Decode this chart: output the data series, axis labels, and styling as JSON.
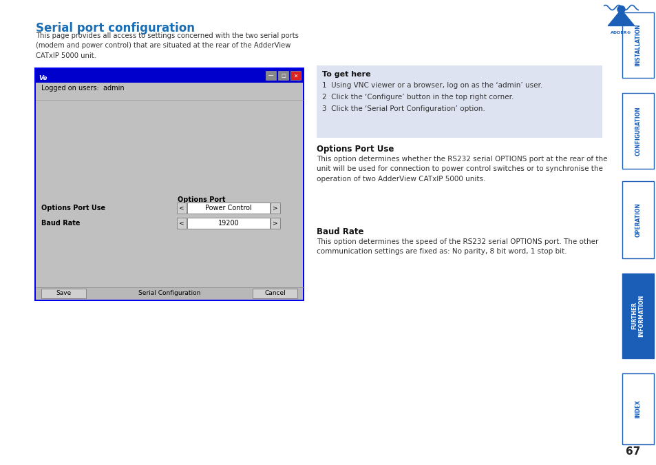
{
  "page_bg": "#ffffff",
  "title": "Serial port configuration",
  "title_color": "#1a6eb5",
  "body_text": "This page provides all access to settings concerned with the two serial ports\n(modem and power control) that are situated at the rear of the AdderView\nCATxIP 5000 unit.",
  "sidebar_labels": [
    "INSTALLATION",
    "CONFIGURATION",
    "OPERATION",
    "FURTHER\nINFORMATION",
    "INDEX"
  ],
  "sidebar_active": 3,
  "sidebar_color_active": "#1a5eb8",
  "sidebar_color_inactive_bg": "#ffffff",
  "sidebar_color_inactive_text": "#1a5eb8",
  "sidebar_border_color": "#1a5eb8",
  "page_number": "67",
  "adder_logo_color": "#1a5eb8",
  "get_here_title": "To get here",
  "get_here_items": [
    "1  Using VNC viewer or a browser, log on as the ‘admin’ user.",
    "2  Click the ‘Configure’ button in the top right corner.",
    "3  Click the ‘Serial Port Configuration’ option."
  ],
  "get_here_bg": "#dde3f0",
  "options_port_use_title": "Options Port Use",
  "options_port_use_body": "This option determines whether the RS232 serial OPTIONS port at the rear of the\nunit will be used for connection to power control switches or to synchronise the\noperation of two AdderView CATxIP 5000 units.",
  "baud_rate_title": "Baud Rate",
  "baud_rate_body": "This option determines the speed of the RS232 serial OPTIONS port. The other\ncommunication settings are fixed as: No parity, 8 bit word, 1 stop bit.",
  "dialog_bg": "#c0c0c0",
  "dialog_titlebar_color": "#0000cc",
  "dialog_logged_text": "Logged on users:  admin",
  "dialog_options_port_label": "Options Port",
  "dialog_row1_label": "Options Port Use",
  "dialog_row1_value": "Power Control",
  "dialog_row2_label": "Baud Rate",
  "dialog_row2_value": "19200",
  "dialog_save_btn": "Save",
  "dialog_title_center": "Serial Configuration",
  "dialog_cancel_btn": "Cancel",
  "dialog_border_color": "#0000ee"
}
